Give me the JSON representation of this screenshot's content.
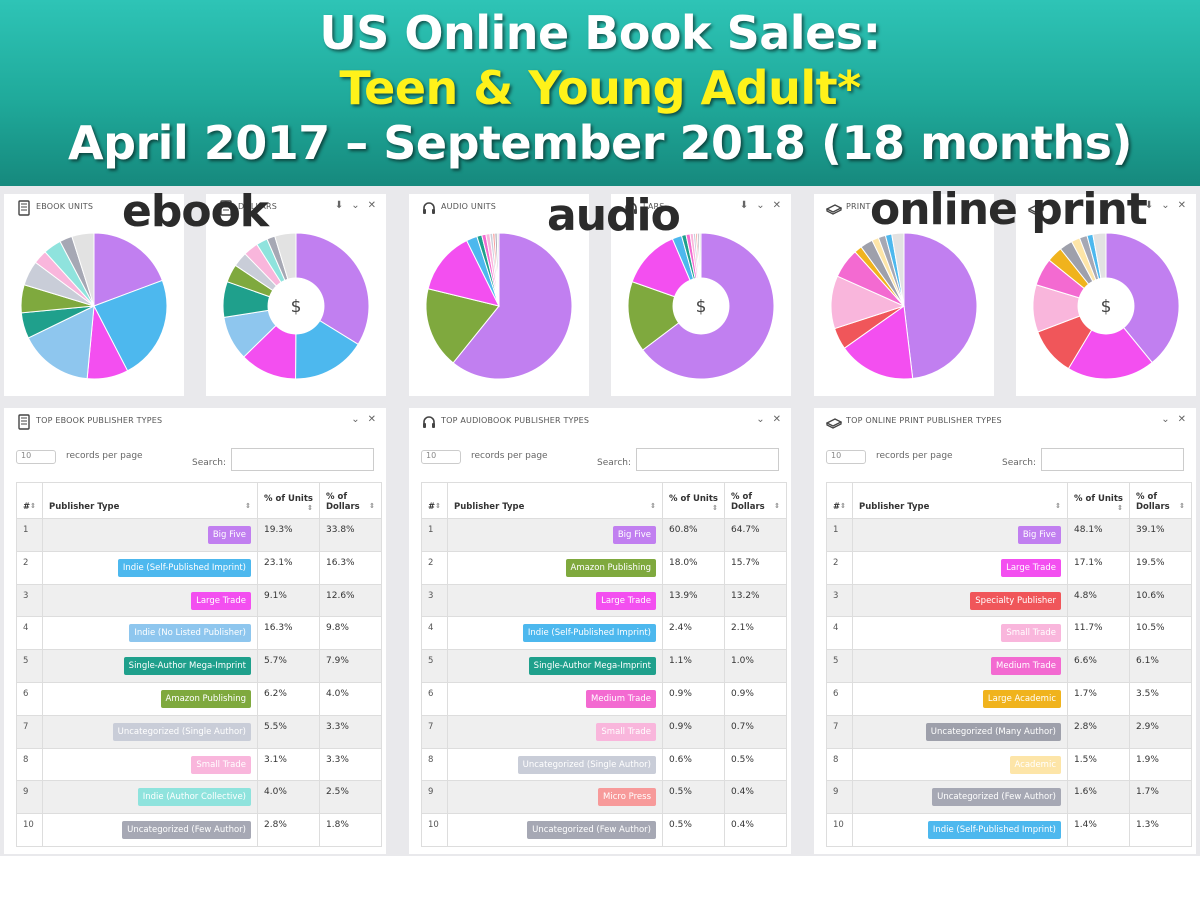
{
  "banner": {
    "line1": "US Online Book Sales:",
    "line2": "Teen & Young Adult*",
    "line3": "April 2017 – September 2018 (18 months)"
  },
  "sections": [
    {
      "key": "ebook",
      "big_label": "ebook",
      "units_title": "EBOOK UNITS",
      "dollars_title": "DOLLARS",
      "table_title": "TOP EBOOK PUBLISHER TYPES"
    },
    {
      "key": "audio",
      "big_label": "audio",
      "units_title": "AUDIO UNITS",
      "dollars_title": "LARS",
      "table_title": "TOP AUDIOBOOK PUBLISHER TYPES"
    },
    {
      "key": "print",
      "big_label": "online print",
      "units_title": "PRINT",
      "dollars_title": "",
      "table_title": "TOP ONLINE PRINT PUBLISHER TYPES"
    }
  ],
  "controls": {
    "download": "⬇",
    "collapse": "⌄",
    "close": "✕",
    "records_value": "10",
    "records_text": "records per page",
    "search_label": "Search:",
    "col_num": "#",
    "col_type": "Publisher Type",
    "col_units": "% of Units",
    "col_dollars": "% of Dollars",
    "dollar_symbol": "$"
  },
  "colors": {
    "Big Five": "#c17ff0",
    "Indie (Self-Published Imprint)": "#4db8ee",
    "Large Trade": "#f34ff0",
    "Indie (No Listed Publisher)": "#8ec6ee",
    "Single-Author Mega-Imprint": "#1fa08c",
    "Amazon Publishing": "#7fa93e",
    "Uncategorized (Single Author)": "#c9cdd8",
    "Small Trade": "#f9b6dc",
    "Indie (Author Collective)": "#8fe3dd",
    "Uncategorized (Few Author)": "#a6a8b4",
    "Medium Trade": "#f36ad1",
    "Micro Press": "#f79a9a",
    "Specialty Publisher": "#f0565a",
    "Large Academic": "#f0b31d",
    "Uncategorized (Many Author)": "#9ea0ab",
    "Academic": "#fde5a8",
    "Other": "#e2e2e2"
  },
  "chart_data": [
    {
      "type": "table",
      "title": "TOP EBOOK PUBLISHER TYPES",
      "columns": [
        "#",
        "Publisher Type",
        "% of Units",
        "% of Dollars"
      ],
      "rows": [
        [
          "1",
          "Big Five",
          "19.3%",
          "33.8%"
        ],
        [
          "2",
          "Indie (Self-Published Imprint)",
          "23.1%",
          "16.3%"
        ],
        [
          "3",
          "Large Trade",
          "9.1%",
          "12.6%"
        ],
        [
          "4",
          "Indie (No Listed Publisher)",
          "16.3%",
          "9.8%"
        ],
        [
          "5",
          "Single-Author Mega-Imprint",
          "5.7%",
          "7.9%"
        ],
        [
          "6",
          "Amazon Publishing",
          "6.2%",
          "4.0%"
        ],
        [
          "7",
          "Uncategorized (Single Author)",
          "5.5%",
          "3.3%"
        ],
        [
          "8",
          "Small Trade",
          "3.1%",
          "3.3%"
        ],
        [
          "9",
          "Indie (Author Collective)",
          "4.0%",
          "2.5%"
        ],
        [
          "10",
          "Uncategorized (Few Author)",
          "2.8%",
          "1.8%"
        ]
      ]
    },
    {
      "type": "table",
      "title": "TOP AUDIOBOOK PUBLISHER TYPES",
      "columns": [
        "#",
        "Publisher Type",
        "% of Units",
        "% of Dollars"
      ],
      "rows": [
        [
          "1",
          "Big Five",
          "60.8%",
          "64.7%"
        ],
        [
          "2",
          "Amazon Publishing",
          "18.0%",
          "15.7%"
        ],
        [
          "3",
          "Large Trade",
          "13.9%",
          "13.2%"
        ],
        [
          "4",
          "Indie (Self-Published Imprint)",
          "2.4%",
          "2.1%"
        ],
        [
          "5",
          "Single-Author Mega-Imprint",
          "1.1%",
          "1.0%"
        ],
        [
          "6",
          "Medium Trade",
          "0.9%",
          "0.9%"
        ],
        [
          "7",
          "Small Trade",
          "0.9%",
          "0.7%"
        ],
        [
          "8",
          "Uncategorized (Single Author)",
          "0.6%",
          "0.5%"
        ],
        [
          "9",
          "Micro Press",
          "0.5%",
          "0.4%"
        ],
        [
          "10",
          "Uncategorized (Few Author)",
          "0.5%",
          "0.4%"
        ]
      ]
    },
    {
      "type": "table",
      "title": "TOP ONLINE PRINT PUBLISHER TYPES",
      "columns": [
        "#",
        "Publisher Type",
        "% of Units",
        "% of Dollars"
      ],
      "rows": [
        [
          "1",
          "Big Five",
          "48.1%",
          "39.1%"
        ],
        [
          "2",
          "Large Trade",
          "17.1%",
          "19.5%"
        ],
        [
          "3",
          "Specialty Publisher",
          "4.8%",
          "10.6%"
        ],
        [
          "4",
          "Small Trade",
          "11.7%",
          "10.5%"
        ],
        [
          "5",
          "Medium Trade",
          "6.6%",
          "6.1%"
        ],
        [
          "6",
          "Large Academic",
          "1.7%",
          "3.5%"
        ],
        [
          "7",
          "Uncategorized (Many Author)",
          "2.8%",
          "2.9%"
        ],
        [
          "8",
          "Academic",
          "1.5%",
          "1.9%"
        ],
        [
          "9",
          "Uncategorized (Few Author)",
          "1.6%",
          "1.7%"
        ],
        [
          "10",
          "Indie (Self-Published Imprint)",
          "1.4%",
          "1.3%"
        ]
      ]
    },
    {
      "type": "pie",
      "title": "EBOOK UNITS",
      "measure": "% of Units",
      "source_table": 0,
      "donut": false
    },
    {
      "type": "pie",
      "title": "DOLLARS",
      "measure": "% of Dollars",
      "source_table": 0,
      "donut": true
    },
    {
      "type": "pie",
      "title": "AUDIO UNITS",
      "measure": "% of Units",
      "source_table": 1,
      "donut": false
    },
    {
      "type": "pie",
      "title": "LARS",
      "measure": "% of Dollars",
      "source_table": 1,
      "donut": true
    },
    {
      "type": "pie",
      "title": "PRINT",
      "measure": "% of Units",
      "source_table": 2,
      "donut": false
    },
    {
      "type": "pie",
      "title": "",
      "measure": "% of Dollars",
      "source_table": 2,
      "donut": true
    }
  ]
}
